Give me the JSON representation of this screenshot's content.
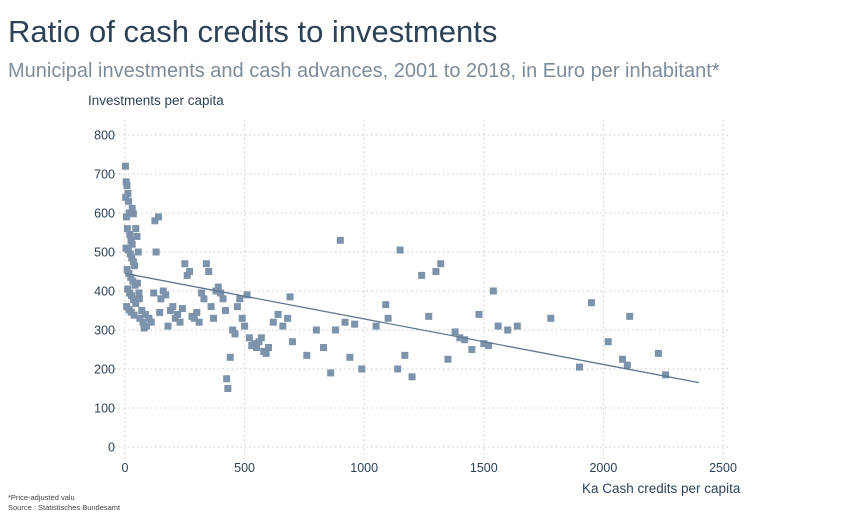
{
  "title": "Ratio of cash credits to investments",
  "subtitle": "Municipal investments and cash advances, 2001 to 2018, in Euro per inhabitant*",
  "footnote": "*Price-adjusted valu",
  "source": "Source : Statistisches Bundesamt",
  "colors": {
    "title": "#2e4257",
    "subtitle": "#7d8c99",
    "marker": "#7d93ab",
    "trend": "#5f7891",
    "grid": "#c8c8c8"
  },
  "chart_data": {
    "type": "scatter",
    "ylabel": "Investments per capita",
    "xlabel": "Ka  Cash credits per capita",
    "xlim": [
      0,
      2500
    ],
    "ylim": [
      0,
      800
    ],
    "x_ticks": [
      0,
      500,
      1000,
      1500,
      2000,
      2500
    ],
    "y_ticks": [
      0,
      100,
      200,
      300,
      400,
      500,
      600,
      700,
      800
    ],
    "grid": "dotted",
    "trendline": {
      "x": [
        0,
        2400
      ],
      "y": [
        445,
        165
      ]
    },
    "series": [
      {
        "points": [
          [
            2,
            720
          ],
          [
            5,
            680
          ],
          [
            8,
            670
          ],
          [
            12,
            650
          ],
          [
            3,
            640
          ],
          [
            15,
            630
          ],
          [
            18,
            600
          ],
          [
            6,
            590
          ],
          [
            10,
            560
          ],
          [
            20,
            545
          ],
          [
            25,
            530
          ],
          [
            30,
            520
          ],
          [
            4,
            510
          ],
          [
            14,
            505
          ],
          [
            22,
            495
          ],
          [
            28,
            485
          ],
          [
            35,
            475
          ],
          [
            40,
            465
          ],
          [
            9,
            455
          ],
          [
            16,
            445
          ],
          [
            24,
            435
          ],
          [
            33,
            425
          ],
          [
            42,
            415
          ],
          [
            11,
            405
          ],
          [
            19,
            395
          ],
          [
            27,
            388
          ],
          [
            36,
            378
          ],
          [
            45,
            368
          ],
          [
            7,
            360
          ],
          [
            17,
            352
          ],
          [
            26,
            346
          ],
          [
            38,
            338
          ],
          [
            30,
            612
          ],
          [
            35,
            598
          ],
          [
            45,
            560
          ],
          [
            50,
            540
          ],
          [
            55,
            500
          ],
          [
            52,
            420
          ],
          [
            58,
            395
          ],
          [
            60,
            380
          ],
          [
            62,
            330
          ],
          [
            70,
            350
          ],
          [
            75,
            320
          ],
          [
            80,
            305
          ],
          [
            85,
            340
          ],
          [
            90,
            310
          ],
          [
            100,
            330
          ],
          [
            110,
            320
          ],
          [
            120,
            395
          ],
          [
            125,
            580
          ],
          [
            130,
            500
          ],
          [
            140,
            590
          ],
          [
            145,
            345
          ],
          [
            150,
            380
          ],
          [
            160,
            400
          ],
          [
            170,
            390
          ],
          [
            180,
            310
          ],
          [
            190,
            350
          ],
          [
            200,
            360
          ],
          [
            210,
            330
          ],
          [
            220,
            340
          ],
          [
            230,
            320
          ],
          [
            240,
            355
          ],
          [
            250,
            470
          ],
          [
            260,
            440
          ],
          [
            270,
            450
          ],
          [
            280,
            335
          ],
          [
            290,
            330
          ],
          [
            300,
            345
          ],
          [
            310,
            320
          ],
          [
            320,
            395
          ],
          [
            330,
            380
          ],
          [
            340,
            470
          ],
          [
            350,
            450
          ],
          [
            360,
            360
          ],
          [
            370,
            330
          ],
          [
            380,
            400
          ],
          [
            390,
            410
          ],
          [
            400,
            395
          ],
          [
            410,
            380
          ],
          [
            420,
            350
          ],
          [
            425,
            175
          ],
          [
            430,
            150
          ],
          [
            440,
            230
          ],
          [
            450,
            300
          ],
          [
            460,
            290
          ],
          [
            470,
            360
          ],
          [
            480,
            380
          ],
          [
            490,
            330
          ],
          [
            500,
            310
          ],
          [
            510,
            390
          ],
          [
            520,
            280
          ],
          [
            530,
            260
          ],
          [
            540,
            265
          ],
          [
            550,
            255
          ],
          [
            560,
            270
          ],
          [
            570,
            280
          ],
          [
            580,
            245
          ],
          [
            590,
            240
          ],
          [
            600,
            255
          ],
          [
            620,
            320
          ],
          [
            640,
            340
          ],
          [
            660,
            310
          ],
          [
            680,
            330
          ],
          [
            700,
            270
          ],
          [
            690,
            385
          ],
          [
            760,
            235
          ],
          [
            800,
            300
          ],
          [
            830,
            255
          ],
          [
            860,
            190
          ],
          [
            880,
            300
          ],
          [
            900,
            530
          ],
          [
            920,
            320
          ],
          [
            940,
            230
          ],
          [
            960,
            315
          ],
          [
            990,
            200
          ],
          [
            1050,
            310
          ],
          [
            1090,
            365
          ],
          [
            1100,
            330
          ],
          [
            1140,
            200
          ],
          [
            1150,
            505
          ],
          [
            1170,
            235
          ],
          [
            1200,
            180
          ],
          [
            1240,
            440
          ],
          [
            1270,
            335
          ],
          [
            1300,
            450
          ],
          [
            1320,
            470
          ],
          [
            1350,
            225
          ],
          [
            1380,
            295
          ],
          [
            1400,
            280
          ],
          [
            1420,
            275
          ],
          [
            1450,
            250
          ],
          [
            1480,
            340
          ],
          [
            1500,
            265
          ],
          [
            1520,
            260
          ],
          [
            1540,
            400
          ],
          [
            1560,
            310
          ],
          [
            1600,
            300
          ],
          [
            1640,
            310
          ],
          [
            1780,
            330
          ],
          [
            1900,
            205
          ],
          [
            1950,
            370
          ],
          [
            2020,
            270
          ],
          [
            2080,
            225
          ],
          [
            2100,
            210
          ],
          [
            2110,
            335
          ],
          [
            2230,
            240
          ],
          [
            2260,
            185
          ]
        ]
      }
    ]
  }
}
